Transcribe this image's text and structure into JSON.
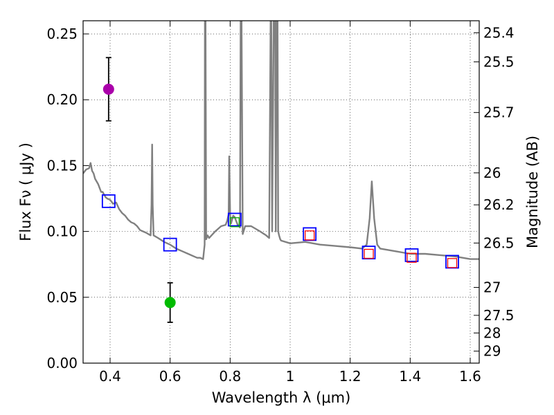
{
  "chart_data": {
    "type": "line",
    "title": "",
    "xlabel": "Wavelength  λ (μm)",
    "ylabel": "Flux  Fν  ( μJy )",
    "y2label": "Magnitude (AB)",
    "xlim": [
      0.31,
      1.63
    ],
    "ylim": [
      0.0,
      0.26
    ],
    "grid": true,
    "x_ticks": [
      0.4,
      0.6,
      0.8,
      1.0,
      1.2,
      1.4,
      1.6
    ],
    "x_tick_labels": [
      "0.4",
      "0.6",
      "0.8",
      "1",
      "1.2",
      "1.4",
      "1.6"
    ],
    "y_ticks": [
      0.0,
      0.05,
      0.1,
      0.15,
      0.2,
      0.25
    ],
    "y_tick_labels": [
      "0.00",
      "0.05",
      "0.10",
      "0.15",
      "0.20",
      "0.25"
    ],
    "y2_ticks": [
      {
        "label": "25.4",
        "flux": 0.2509
      },
      {
        "label": "25.5",
        "flux": 0.2288
      },
      {
        "label": "25.7",
        "flux": 0.1903
      },
      {
        "label": "26",
        "flux": 0.1445
      },
      {
        "label": "26.2",
        "flux": 0.1202
      },
      {
        "label": "26.5",
        "flux": 0.0912
      },
      {
        "label": "27",
        "flux": 0.0575
      },
      {
        "label": "27.5",
        "flux": 0.0363
      },
      {
        "label": "28",
        "flux": 0.0229
      },
      {
        "label": "29",
        "flux": 0.0091
      }
    ],
    "model_spectrum": {
      "name": "model SED",
      "color": "#808080",
      "x": [
        0.31,
        0.32,
        0.33,
        0.335,
        0.34,
        0.345,
        0.35,
        0.36,
        0.37,
        0.375,
        0.38,
        0.385,
        0.39,
        0.4,
        0.41,
        0.42,
        0.43,
        0.44,
        0.45,
        0.46,
        0.47,
        0.48,
        0.49,
        0.5,
        0.51,
        0.52,
        0.535,
        0.538,
        0.54,
        0.542,
        0.545,
        0.56,
        0.58,
        0.6,
        0.62,
        0.64,
        0.66,
        0.68,
        0.69,
        0.7,
        0.71,
        0.715,
        0.716,
        0.718,
        0.72,
        0.725,
        0.73,
        0.75,
        0.77,
        0.785,
        0.79,
        0.795,
        0.797,
        0.8,
        0.803,
        0.81,
        0.815,
        0.82,
        0.825,
        0.83,
        0.833,
        0.835,
        0.838,
        0.842,
        0.85,
        0.87,
        0.9,
        0.92,
        0.93,
        0.935,
        0.937,
        0.94,
        0.945,
        0.95,
        0.952,
        0.955,
        0.958,
        0.96,
        0.963,
        0.967,
        0.97,
        1.0,
        1.05,
        1.1,
        1.15,
        1.2,
        1.24,
        1.255,
        1.265,
        1.272,
        1.28,
        1.29,
        1.3,
        1.35,
        1.4,
        1.45,
        1.5,
        1.55,
        1.6,
        1.63
      ],
      "y": [
        0.144,
        0.147,
        0.148,
        0.152,
        0.146,
        0.144,
        0.14,
        0.136,
        0.13,
        0.13,
        0.128,
        0.126,
        0.125,
        0.124,
        0.121,
        0.122,
        0.117,
        0.114,
        0.112,
        0.109,
        0.107,
        0.106,
        0.104,
        0.101,
        0.1,
        0.099,
        0.097,
        0.12,
        0.166,
        0.12,
        0.097,
        0.095,
        0.092,
        0.09,
        0.087,
        0.085,
        0.083,
        0.081,
        0.08,
        0.08,
        0.079,
        0.09,
        0.26,
        0.26,
        0.094,
        0.097,
        0.095,
        0.1,
        0.104,
        0.105,
        0.108,
        0.113,
        0.157,
        0.113,
        0.106,
        0.112,
        0.111,
        0.108,
        0.105,
        0.104,
        0.103,
        0.26,
        0.26,
        0.098,
        0.104,
        0.104,
        0.1,
        0.097,
        0.095,
        0.26,
        0.26,
        0.1,
        0.26,
        0.26,
        0.1,
        0.26,
        0.26,
        0.1,
        0.097,
        0.094,
        0.093,
        0.091,
        0.092,
        0.09,
        0.089,
        0.088,
        0.087,
        0.09,
        0.11,
        0.138,
        0.11,
        0.09,
        0.087,
        0.085,
        0.083,
        0.083,
        0.082,
        0.081,
        0.079,
        0.079
      ]
    },
    "photometry_blue_squares": {
      "name": "blue squares",
      "color": "#0000ff",
      "x": [
        0.395,
        0.6,
        0.815,
        1.065,
        1.262,
        1.405,
        1.54
      ],
      "y": [
        0.123,
        0.09,
        0.109,
        0.098,
        0.084,
        0.082,
        0.077
      ]
    },
    "model_red_squares": {
      "name": "red squares",
      "color": "#ff0000",
      "x": [
        1.065,
        1.262,
        1.405,
        1.54
      ],
      "y": [
        0.097,
        0.083,
        0.08,
        0.076
      ]
    },
    "model_green_square": {
      "name": "green square",
      "color": "#00aa00",
      "x": [
        0.815
      ],
      "y": [
        0.107
      ]
    },
    "observed_points": [
      {
        "name": "magenta point",
        "color": "#aa00aa",
        "x": 0.395,
        "y": 0.208,
        "err_low": 0.184,
        "err_high": 0.232
      },
      {
        "name": "green point",
        "color": "#00bb00",
        "x": 0.6,
        "y": 0.046,
        "err_low": 0.031,
        "err_high": 0.061
      }
    ]
  }
}
